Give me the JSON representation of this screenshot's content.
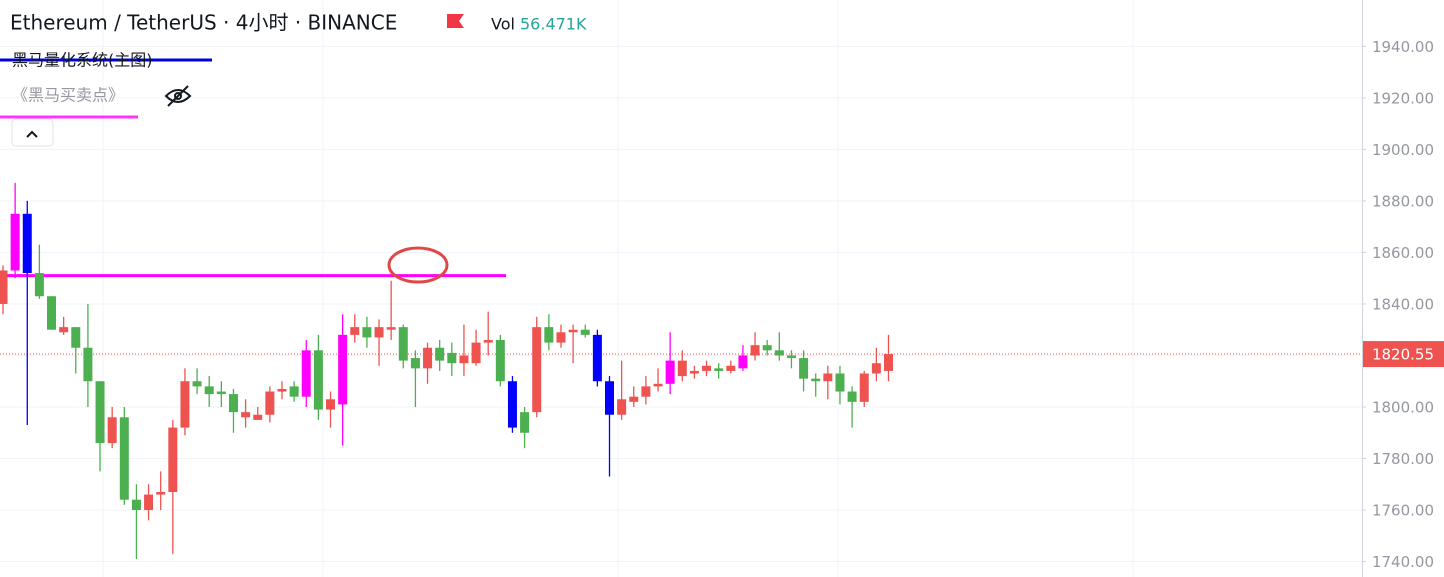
{
  "chart_data": {
    "type": "candlestick",
    "title": "Ethereum / TetherUS · 4小时 · BINANCE",
    "volume_label": "Vol",
    "volume": {
      "value": 56471,
      "label": "56.471K"
    },
    "indicators": [
      "黑马量化系统(主图)",
      "《黑马买卖点》"
    ],
    "open": [
      1840,
      1853,
      1875,
      1852,
      1843,
      1829,
      1831,
      1823,
      1810,
      1786,
      1796,
      1764,
      1760,
      1766,
      1767,
      1792,
      1810,
      1808,
      1806,
      1805,
      1796,
      1795,
      1797,
      1806,
      1808,
      1804,
      1822,
      1799,
      1801,
      1828,
      1831,
      1827,
      1830,
      1831,
      1819,
      1815,
      1823,
      1821,
      1817,
      1817,
      1825,
      1826,
      1810,
      1798,
      1798,
      1831,
      1825,
      1829,
      1830,
      1828,
      1810,
      1797,
      1802,
      1804,
      1808,
      1809,
      1812,
      1813,
      1814,
      1815,
      1814,
      1815,
      1820,
      1824,
      1822,
      1820,
      1819,
      1811,
      1810,
      1813,
      1806,
      1802,
      1813,
      1814
    ],
    "high": [
      1855,
      1887,
      1880,
      1863,
      1843,
      1835,
      1831,
      1840,
      1810,
      1800,
      1800,
      1770,
      1770,
      1775,
      1795,
      1815,
      1815,
      1812,
      1810,
      1807,
      1803,
      1800,
      1808,
      1810,
      1810,
      1826,
      1828,
      1806,
      1836,
      1836,
      1835,
      1834,
      1849,
      1832,
      1822,
      1825,
      1826,
      1825,
      1832,
      1830,
      1837,
      1828,
      1812,
      1800,
      1835,
      1836,
      1832,
      1832,
      1832,
      1830,
      1812,
      1818,
      1808,
      1812,
      1815,
      1829,
      1822,
      1816,
      1818,
      1817,
      1818,
      1824,
      1829,
      1826,
      1829,
      1822,
      1822,
      1813,
      1816,
      1816,
      1808,
      1814,
      1823,
      1828
    ],
    "low": [
      1836,
      1850,
      1793,
      1842,
      1830,
      1828,
      1813,
      1800,
      1775,
      1784,
      1762,
      1741,
      1756,
      1760,
      1743,
      1789,
      1805,
      1800,
      1800,
      1790,
      1792,
      1795,
      1794,
      1803,
      1802,
      1800,
      1795,
      1792,
      1785,
      1825,
      1823,
      1816,
      1826,
      1815,
      1800,
      1809,
      1814,
      1812,
      1812,
      1816,
      1820,
      1808,
      1790,
      1784,
      1796,
      1822,
      1823,
      1817,
      1827,
      1808,
      1773,
      1795,
      1800,
      1801,
      1806,
      1805,
      1810,
      1811,
      1812,
      1811,
      1813,
      1814,
      1818,
      1820,
      1818,
      1815,
      1806,
      1804,
      1803,
      1801,
      1792,
      1800,
      1810,
      1810
    ],
    "close": [
      1853,
      1875,
      1852,
      1843,
      1830,
      1831,
      1823,
      1810,
      1786,
      1796,
      1764,
      1760,
      1766,
      1767,
      1792,
      1810,
      1808,
      1805,
      1805,
      1798,
      1798,
      1797,
      1806,
      1807,
      1804,
      1822,
      1799,
      1803,
      1828,
      1831,
      1827,
      1831,
      1831,
      1818,
      1815,
      1823,
      1818,
      1817,
      1820,
      1825,
      1826,
      1810,
      1792,
      1790,
      1831,
      1825,
      1829,
      1830,
      1828,
      1810,
      1797,
      1803,
      1804,
      1808,
      1809,
      1818,
      1818,
      1814,
      1816,
      1814,
      1816,
      1820,
      1824,
      1822,
      1820,
      1819,
      1811,
      1810,
      1813,
      1806,
      1802,
      1813,
      1817,
      1820.55
    ],
    "colors": [
      "#ef5350",
      "#ff00ff",
      "#0000ff",
      "#4caf50",
      "#4caf50",
      "#ef5350",
      "#4caf50",
      "#4caf50",
      "#4caf50",
      "#ef5350",
      "#4caf50",
      "#4caf50",
      "#ef5350",
      "#ef5350",
      "#ef5350",
      "#ef5350",
      "#4caf50",
      "#4caf50",
      "#4caf50",
      "#4caf50",
      "#ef5350",
      "#ef5350",
      "#ef5350",
      "#ef5350",
      "#4caf50",
      "#ff00ff",
      "#4caf50",
      "#ef5350",
      "#ff00ff",
      "#ef5350",
      "#4caf50",
      "#ef5350",
      "#ef5350",
      "#4caf50",
      "#4caf50",
      "#ef5350",
      "#4caf50",
      "#4caf50",
      "#ef5350",
      "#ef5350",
      "#ef5350",
      "#4caf50",
      "#0000ff",
      "#4caf50",
      "#ef5350",
      "#4caf50",
      "#ef5350",
      "#ef5350",
      "#4caf50",
      "#0000ff",
      "#0000ff",
      "#ef5350",
      "#ef5350",
      "#ef5350",
      "#ef5350",
      "#ff00ff",
      "#ef5350",
      "#ef5350",
      "#ef5350",
      "#4caf50",
      "#ef5350",
      "#ff00ff",
      "#ef5350",
      "#4caf50",
      "#4caf50",
      "#4caf50",
      "#4caf50",
      "#4caf50",
      "#ef5350",
      "#4caf50",
      "#4caf50",
      "#ef5350",
      "#ef5350",
      "#ef5350"
    ],
    "level": {
      "value": 1851,
      "color": "#ff00ff"
    },
    "last_price": 1820.55,
    "ylim": [
      1734,
      1958
    ],
    "yticks": [
      {
        "value": 1940,
        "label": "1940.00"
      },
      {
        "value": 1920,
        "label": "1920.00"
      },
      {
        "value": 1900,
        "label": "1900.00"
      },
      {
        "value": 1880,
        "label": "1880.00"
      },
      {
        "value": 1860,
        "label": "1860.00"
      },
      {
        "value": 1840,
        "label": "1840.00"
      },
      {
        "value": 1820,
        "label": "1820.00"
      },
      {
        "value": 1800,
        "label": "1800.00"
      },
      {
        "value": 1780,
        "label": "1780.00"
      },
      {
        "value": 1760,
        "label": "1760.00"
      },
      {
        "value": 1740,
        "label": "1740.00"
      }
    ],
    "grid": true
  }
}
